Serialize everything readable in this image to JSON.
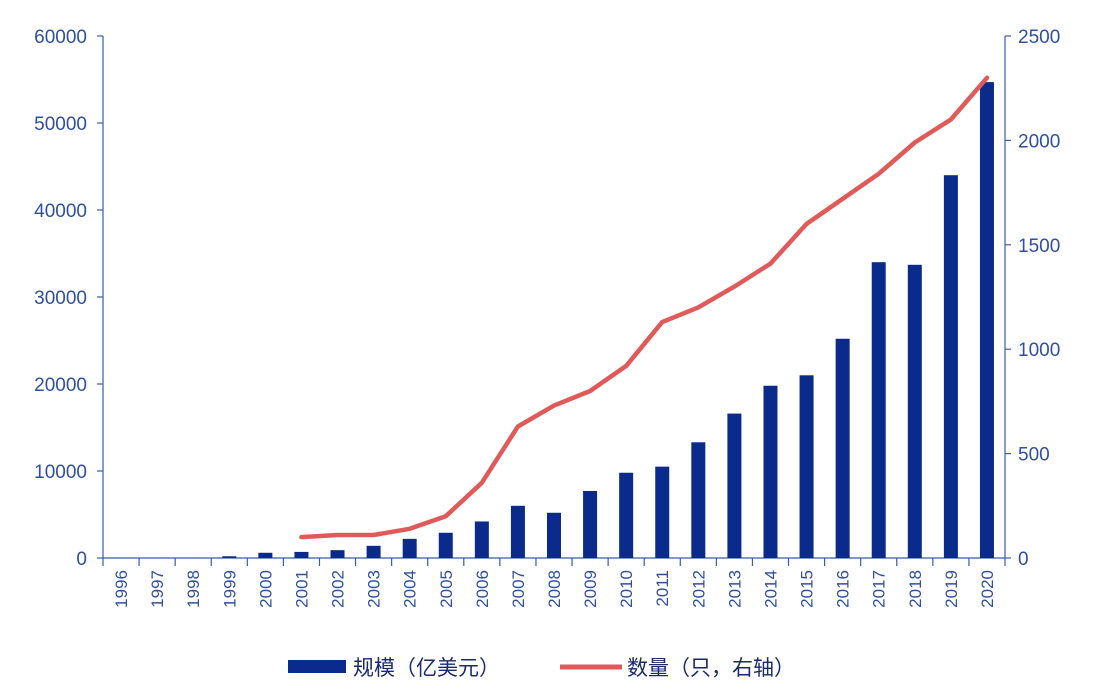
{
  "chart_data": {
    "type": "bar",
    "categories": [
      "1996",
      "1997",
      "1998",
      "1999",
      "2000",
      "2001",
      "2002",
      "2003",
      "2004",
      "2005",
      "2006",
      "2007",
      "2008",
      "2009",
      "2010",
      "2011",
      "2012",
      "2013",
      "2014",
      "2015",
      "2016",
      "2017",
      "2018",
      "2019",
      "2020"
    ],
    "series": [
      {
        "name": "规模（亿美元）",
        "type": "bar",
        "axis": "left",
        "color": "#0a2a8c",
        "values": [
          0,
          0,
          0,
          200,
          600,
          700,
          900,
          1400,
          2200,
          2900,
          4200,
          6000,
          5200,
          7700,
          9800,
          10500,
          13300,
          16600,
          19800,
          21000,
          25200,
          34000,
          33700,
          44000,
          54700
        ]
      },
      {
        "name": "数量（只，右轴）",
        "type": "line",
        "axis": "right",
        "color": "#e05a5a",
        "values": [
          null,
          null,
          null,
          null,
          null,
          100,
          110,
          110,
          140,
          200,
          360,
          630,
          730,
          800,
          920,
          1130,
          1200,
          1300,
          1410,
          1600,
          1720,
          1840,
          1990,
          2100,
          2300
        ]
      }
    ],
    "ylim_left": [
      0,
      60000
    ],
    "yticks_left": [
      "0",
      "10000",
      "20000",
      "30000",
      "40000",
      "50000",
      "60000"
    ],
    "ylim_right": [
      0,
      2500
    ],
    "yticks_right": [
      "0",
      "500",
      "1000",
      "1500",
      "2000",
      "2500"
    ],
    "legend_position": "bottom",
    "grid": false
  }
}
